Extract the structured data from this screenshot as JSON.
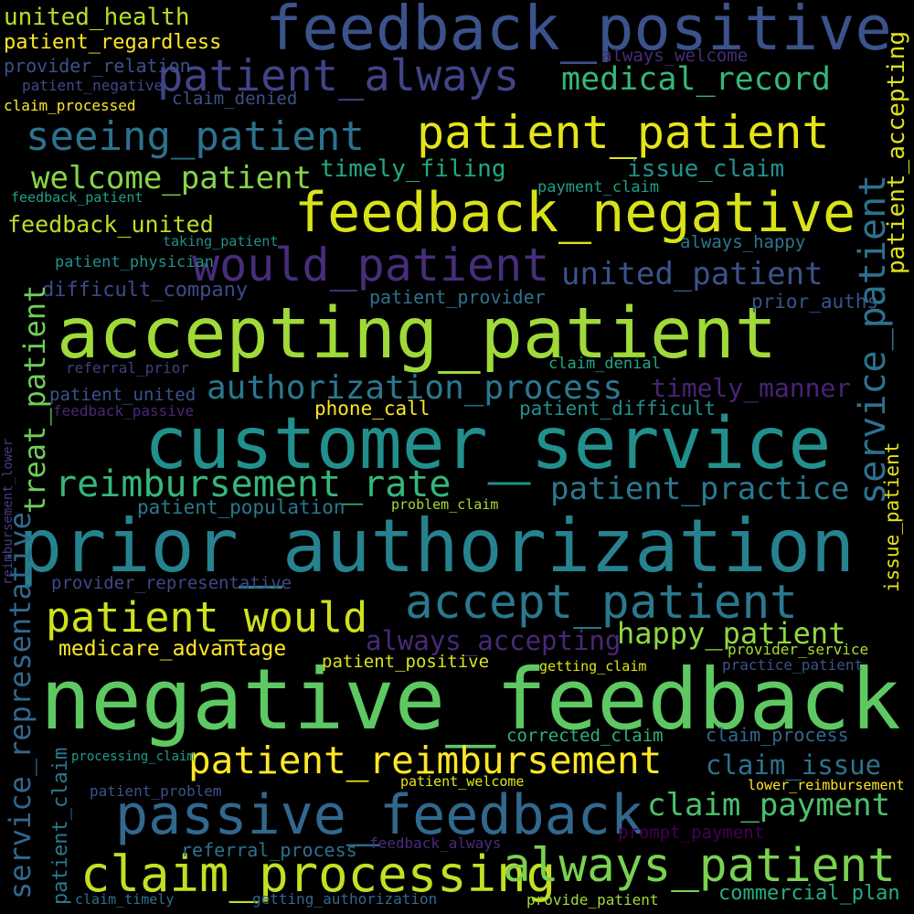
{
  "background": "#000000",
  "palette": {
    "yellow": "#fde725",
    "lime": "#b5de2b",
    "green": "#6ece58",
    "mint": "#35b779",
    "teal": "#1f9e89",
    "cyan": "#26828e",
    "blue": "#31688e",
    "indigo": "#3e4989",
    "violet": "#482878",
    "purple": "#440154"
  },
  "words": [
    {
      "text": "negative_feedback",
      "color": "#5ec962"
    },
    {
      "text": "prior_authorization",
      "color": "#26828e"
    },
    {
      "text": "customer_service",
      "color": "#21908d"
    },
    {
      "text": "accepting_patient",
      "color": "#a0da39"
    },
    {
      "text": "feedback_negative",
      "color": "#d8e219"
    },
    {
      "text": "feedback_positive",
      "color": "#3b528b"
    },
    {
      "text": "passive_feedback",
      "color": "#31688e"
    },
    {
      "text": "claim_processing",
      "color": "#c2df23"
    },
    {
      "text": "always_patient",
      "color": "#7ad151"
    },
    {
      "text": "patient_patient",
      "color": "#e5e419"
    },
    {
      "text": "patient_always",
      "color": "#414487"
    },
    {
      "text": "accept_patient",
      "color": "#2a788e"
    },
    {
      "text": "would_patient",
      "color": "#472d7b"
    },
    {
      "text": "patient_would",
      "color": "#d0e11c"
    },
    {
      "text": "reimbursement_rate",
      "color": "#35b779"
    },
    {
      "text": "authorization_process",
      "color": "#2a788e"
    },
    {
      "text": "patient_reimbursement",
      "color": "#fde725"
    },
    {
      "text": "seeing_patient",
      "color": "#2c728e"
    },
    {
      "text": "welcome_patient",
      "color": "#86d549"
    },
    {
      "text": "united_patient",
      "color": "#3b528b"
    },
    {
      "text": "patient_practice",
      "color": "#2a788e"
    },
    {
      "text": "medical_record",
      "color": "#35b779"
    },
    {
      "text": "claim_payment",
      "color": "#4ac16d"
    },
    {
      "text": "happy_patient",
      "color": "#90d743"
    },
    {
      "text": "always_accepting",
      "color": "#482878"
    },
    {
      "text": "timely_manner",
      "color": "#482475"
    },
    {
      "text": "claim_issue",
      "color": "#2c728e"
    },
    {
      "text": "feedback_united",
      "color": "#bddf26"
    },
    {
      "text": "timely_filing",
      "color": "#22a884"
    },
    {
      "text": "issue_claim",
      "color": "#21918c"
    },
    {
      "text": "medicare_advantage",
      "color": "#fde725"
    },
    {
      "text": "patient_positive",
      "color": "#dde318"
    },
    {
      "text": "united_health",
      "color": "#b5de2b"
    },
    {
      "text": "patient_regardless",
      "color": "#fde725"
    },
    {
      "text": "provider_relation",
      "color": "#3b528b"
    },
    {
      "text": "always_welcome",
      "color": "#472d7b"
    },
    {
      "text": "claim_denied",
      "color": "#3b528b"
    },
    {
      "text": "patient_negative",
      "color": "#3e4989"
    },
    {
      "text": "claim_processed",
      "color": "#fde725"
    },
    {
      "text": "payment_claim",
      "color": "#1f9e89"
    },
    {
      "text": "feedback_patient",
      "color": "#1fa187"
    },
    {
      "text": "taking_patient",
      "color": "#21918c"
    },
    {
      "text": "always_happy",
      "color": "#2a788e"
    },
    {
      "text": "patient_physician",
      "color": "#21908d"
    },
    {
      "text": "difficult_company",
      "color": "#3e4989"
    },
    {
      "text": "patient_provider",
      "color": "#2c728e"
    },
    {
      "text": "prior_auths",
      "color": "#3b528b"
    },
    {
      "text": "referral_prior",
      "color": "#424086"
    },
    {
      "text": "claim_denial",
      "color": "#22a884"
    },
    {
      "text": "patient_united",
      "color": "#3b528b"
    },
    {
      "text": "feedback_passive",
      "color": "#482878"
    },
    {
      "text": "phone_call",
      "color": "#fde725"
    },
    {
      "text": "patient_difficult",
      "color": "#21908d"
    },
    {
      "text": "patient_population",
      "color": "#2a788e"
    },
    {
      "text": "problem_claim",
      "color": "#a8db34"
    },
    {
      "text": "provider_representative",
      "color": "#3e4989"
    },
    {
      "text": "getting_claim",
      "color": "#dde318"
    },
    {
      "text": "provider_service",
      "color": "#aadc32"
    },
    {
      "text": "practice_patient",
      "color": "#3b528b"
    },
    {
      "text": "corrected_claim",
      "color": "#2db27d"
    },
    {
      "text": "claim_process",
      "color": "#31688e"
    },
    {
      "text": "processing_claim",
      "color": "#1f9e89"
    },
    {
      "text": "patient_welcome",
      "color": "#e2e418"
    },
    {
      "text": "patient_problem",
      "color": "#3b528b"
    },
    {
      "text": "lower_reimbursement",
      "color": "#fde725"
    },
    {
      "text": "prompt_payment",
      "color": "#440154"
    },
    {
      "text": "feedback_always",
      "color": "#472d7b"
    },
    {
      "text": "referral_process",
      "color": "#2c728e"
    },
    {
      "text": "claim_timely",
      "color": "#2c728e"
    },
    {
      "text": "getting_authorization",
      "color": "#31688e"
    },
    {
      "text": "provide_patient",
      "color": "#a0da39"
    },
    {
      "text": "commercial_plan",
      "color": "#27ad81"
    },
    {
      "text": "service_patient",
      "color": "#2c728e"
    },
    {
      "text": "patient_accepting",
      "color": "#dde318"
    },
    {
      "text": "issue_patient",
      "color": "#e5e419"
    },
    {
      "text": "treat_patient",
      "color": "#6ece58"
    },
    {
      "text": "service_representative",
      "color": "#31688e"
    },
    {
      "text": "reimbursement_lower",
      "color": "#433e85"
    },
    {
      "text": "patient_claim",
      "color": "#2a788e"
    }
  ]
}
